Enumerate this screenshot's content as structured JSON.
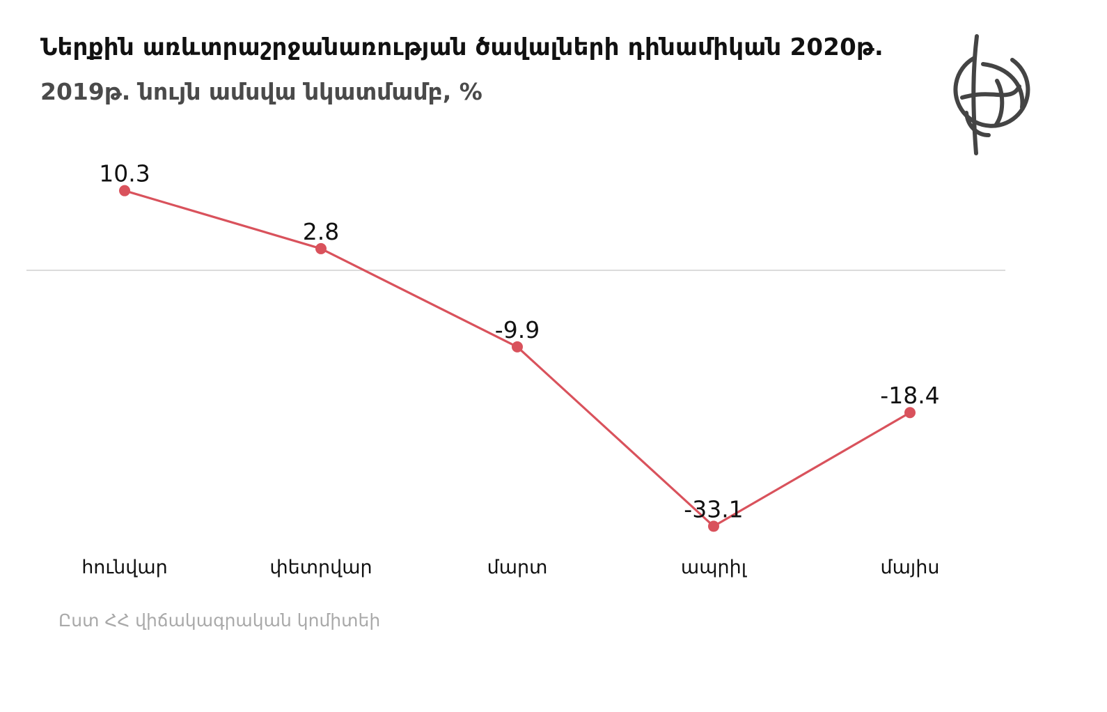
{
  "title": {
    "line1": "Ներքին առևտրաշրջանառության ծավալների դինամիկան 2020թ.",
    "line2": "2019թ. նույն ամսվա նկատմամբ, %"
  },
  "logo": {
    "icon": "circular-emblem-icon"
  },
  "colors": {
    "series": "#d9525c",
    "zero_line": "#cfcfcf",
    "label": "#111111",
    "category": "#111111",
    "source": "#a9a9a9"
  },
  "chart_data": {
    "type": "line",
    "categories": [
      "հունվար",
      "փետրվար",
      "մարտ",
      "ապրիլ",
      "մայիս"
    ],
    "series": [
      {
        "values": [
          10.3,
          2.8,
          -9.9,
          -33.1,
          -18.4
        ]
      }
    ],
    "data_labels": [
      "10.3",
      "2.8",
      "-9.9",
      "-33.1",
      "-18.4"
    ],
    "ylim": [
      -40,
      15
    ],
    "reference_line": 0,
    "grid": false,
    "legend": "none"
  },
  "source": "Ըստ ՀՀ վիճակագրական կոմիտեի"
}
